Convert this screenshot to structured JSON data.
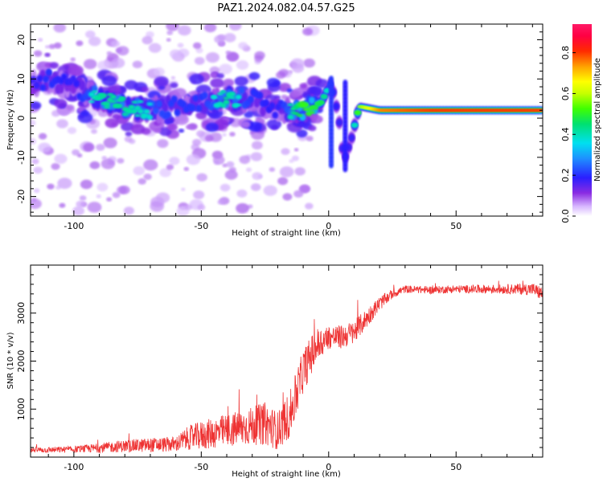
{
  "figure_title": "PAZ1.2024.082.04.57.G25",
  "chart_data": [
    {
      "type": "heatmap",
      "title": "PAZ1.2024.082.04.57.G25",
      "xlabel": "Height of straight line (km)",
      "ylabel": "Frequency (Hz)",
      "xlim": [
        -117,
        84
      ],
      "ylim": [
        -25,
        24
      ],
      "x_ticks": [
        -100,
        -50,
        0,
        50
      ],
      "y_ticks": [
        -20,
        -10,
        0,
        10,
        20
      ],
      "colorbar": {
        "label": "Normalized spectral amplitude",
        "range": [
          0,
          0.94
        ],
        "ticks": [
          0.0,
          0.2,
          0.4,
          0.6,
          0.8
        ],
        "colormap": "rainbow (white → violet → blue → cyan → green → yellow → orange → red → magenta)"
      },
      "ridge": [
        {
          "x": -115,
          "freq": 9,
          "amp": 0.3
        },
        {
          "x": -110,
          "freq": 10,
          "amp": 0.35
        },
        {
          "x": -100,
          "freq": 8,
          "amp": 0.3
        },
        {
          "x": -90,
          "freq": 5,
          "amp": 0.45
        },
        {
          "x": -80,
          "freq": 3,
          "amp": 0.45
        },
        {
          "x": -70,
          "freq": 2,
          "amp": 0.4
        },
        {
          "x": -60,
          "freq": 3,
          "amp": 0.35
        },
        {
          "x": -50,
          "freq": 4,
          "amp": 0.35
        },
        {
          "x": -40,
          "freq": 5,
          "amp": 0.45
        },
        {
          "x": -30,
          "freq": 5,
          "amp": 0.35
        },
        {
          "x": -20,
          "freq": 2,
          "amp": 0.3
        },
        {
          "x": -10,
          "freq": 2,
          "amp": 0.55
        },
        {
          "x": -3,
          "freq": 4,
          "amp": 0.5
        },
        {
          "x": 1,
          "freq": 9,
          "amp": 0.35
        },
        {
          "x": 4,
          "freq": 0,
          "amp": 0.3
        },
        {
          "x": 6,
          "freq": -11,
          "amp": 0.3
        },
        {
          "x": 9,
          "freq": -5,
          "amp": 0.3
        },
        {
          "x": 12,
          "freq": 3,
          "amp": 0.6
        },
        {
          "x": 20,
          "freq": 2,
          "amp": 0.8
        },
        {
          "x": 40,
          "freq": 2,
          "amp": 0.85
        },
        {
          "x": 60,
          "freq": 2,
          "amp": 0.85
        },
        {
          "x": 84,
          "freq": 2,
          "amp": 0.85
        }
      ]
    },
    {
      "type": "line",
      "xlabel": "Height of straight line (km)",
      "ylabel": "SNR (10 * v/v)",
      "xlim": [
        -117,
        84
      ],
      "ylim": [
        0,
        4000
      ],
      "x_ticks": [
        -100,
        -50,
        0,
        50
      ],
      "y_ticks": [
        1000,
        2000,
        3000
      ],
      "color": "#ee3333",
      "series": [
        {
          "x": [
            -117,
            -110,
            -100,
            -90,
            -80,
            -70,
            -60,
            -55,
            -50,
            -40,
            -30,
            -25,
            -20,
            -15,
            -10,
            -5,
            0,
            5,
            10,
            15,
            20,
            25,
            30,
            40,
            50,
            60,
            70,
            80,
            84
          ],
          "values": [
            150,
            150,
            160,
            190,
            230,
            250,
            270,
            400,
            450,
            550,
            650,
            700,
            550,
            900,
            1800,
            2300,
            2500,
            2500,
            2600,
            2900,
            3200,
            3400,
            3500,
            3480,
            3500,
            3500,
            3500,
            3500,
            3400
          ],
          "noise": [
            60,
            60,
            70,
            100,
            130,
            150,
            160,
            250,
            300,
            350,
            400,
            450,
            400,
            500,
            450,
            400,
            250,
            250,
            250,
            200,
            150,
            100,
            80,
            80,
            80,
            90,
            100,
            130,
            150
          ]
        }
      ]
    }
  ]
}
